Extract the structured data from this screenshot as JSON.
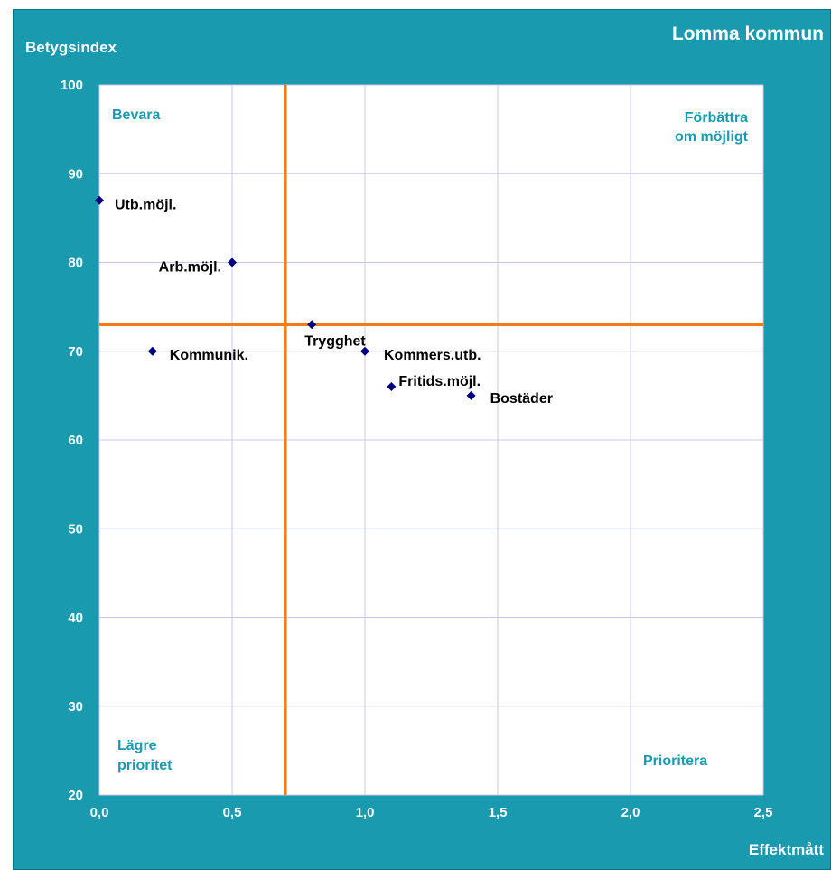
{
  "chart_data": {
    "type": "scatter",
    "title": "Lomma kommun",
    "xlabel": "Effektmått",
    "ylabel": "Betygsindex",
    "xlim": [
      0,
      2.5
    ],
    "ylim": [
      20,
      100
    ],
    "x_ticks": [
      "0,0",
      "0,5",
      "1,0",
      "1,5",
      "2,0",
      "2,5"
    ],
    "y_ticks": [
      "20",
      "30",
      "40",
      "50",
      "60",
      "70",
      "80",
      "90",
      "100"
    ],
    "grid": true,
    "reference_lines": {
      "x": 0.7,
      "y": 73
    },
    "quadrants": {
      "top_left": "Bevara",
      "top_right_line1": "Förbättra",
      "top_right_line2": "om möjligt",
      "bottom_left_line1": "Lägre",
      "bottom_left_line2": "prioritet",
      "bottom_right": "Prioritera"
    },
    "points": [
      {
        "label": "Utb.möjl.",
        "x": 0.0,
        "y": 87
      },
      {
        "label": "Arb.möjl.",
        "x": 0.5,
        "y": 80
      },
      {
        "label": "Trygghet",
        "x": 0.8,
        "y": 73
      },
      {
        "label": "Kommunik.",
        "x": 0.2,
        "y": 70
      },
      {
        "label": "Kommers.utb.",
        "x": 1.0,
        "y": 70
      },
      {
        "label": "Fritids.möjl.",
        "x": 1.1,
        "y": 66
      },
      {
        "label": "Bostäder",
        "x": 1.4,
        "y": 65
      }
    ],
    "colors": {
      "background": "#1a9aae",
      "plot_area": "#ffffff",
      "grid": "#c8c8e6",
      "reference_line": "#f07a16",
      "marker": "#000080"
    }
  }
}
